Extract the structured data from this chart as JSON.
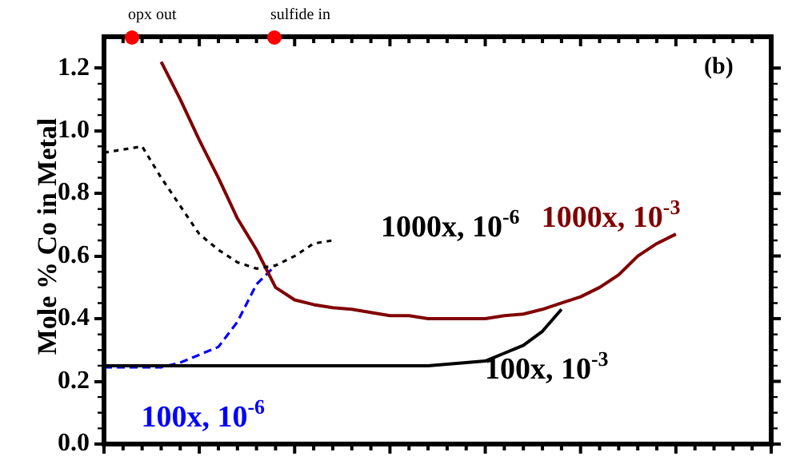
{
  "chart_data": {
    "type": "line",
    "ylabel": "Mole % Co in Metal",
    "categories": [
      null,
      null,
      null,
      null,
      null,
      null,
      null,
      null,
      null,
      null,
      null,
      null,
      null,
      null,
      null,
      null,
      null,
      null,
      null,
      null,
      null,
      null,
      null,
      null,
      null,
      null,
      null,
      null,
      null,
      null,
      null,
      null,
      null,
      null,
      null,
      null
    ],
    "ylim": [
      0,
      1.3
    ],
    "yticks": [
      {
        "value": 0,
        "label": "0.0"
      },
      {
        "value": 0.2,
        "label": "0.2"
      },
      {
        "value": 0.4,
        "label": "0.4"
      },
      {
        "value": 0.6,
        "label": "0.6"
      },
      {
        "value": 0.8,
        "label": "0.8"
      },
      {
        "value": 1.0,
        "label": "1.0"
      },
      {
        "value": 1.2,
        "label": "1.2"
      }
    ],
    "tick_labels": "y",
    "grid": false,
    "legend": false,
    "marker": "none",
    "annotations": [
      "(b)",
      "opx out",
      "sulfide in"
    ],
    "series": [
      {
        "name": "1000x, 10$^{-6}$",
        "color": "#000000",
        "line_style": "dotted",
        "values": [
          0.93,
          0.94,
          0.95,
          0.85,
          0.76,
          0.67,
          0.62,
          0.58,
          0.56,
          0.57,
          0.6,
          0.64,
          0.65,
          null,
          null,
          null,
          null,
          null,
          null,
          null,
          null,
          null,
          null,
          null,
          null,
          null,
          null,
          null,
          null,
          null,
          null,
          null,
          null,
          null,
          null,
          null
        ]
      },
      {
        "name": "1000x, 10$^{-3}$",
        "color": "#800000",
        "line_style": "solid",
        "values": [
          null,
          null,
          null,
          1.22,
          1.1,
          0.97,
          0.85,
          0.72,
          0.62,
          0.5,
          0.46,
          0.445,
          0.435,
          0.43,
          0.42,
          0.41,
          0.41,
          0.4,
          0.4,
          0.4,
          0.4,
          0.41,
          0.415,
          0.43,
          0.45,
          0.47,
          0.5,
          0.54,
          0.6,
          0.64,
          0.67,
          null,
          null,
          null,
          null,
          null
        ]
      },
      {
        "name": "100x, 10$^{-3}$",
        "color": "#000000",
        "line_style": "solid",
        "values": [
          0.25,
          0.25,
          0.25,
          0.25,
          0.25,
          0.25,
          0.25,
          0.25,
          0.25,
          0.25,
          0.25,
          0.25,
          0.25,
          0.25,
          0.25,
          0.25,
          0.25,
          0.25,
          0.255,
          0.26,
          0.265,
          0.29,
          0.315,
          0.36,
          0.43,
          null,
          null,
          null,
          null,
          null,
          null,
          null,
          null,
          null,
          null,
          null
        ]
      },
      {
        "name": "100x, 10$^{-6}$",
        "color": "#0000ff",
        "line_style": "dashed",
        "values": [
          0.245,
          0.245,
          0.245,
          0.245,
          0.26,
          0.285,
          0.31,
          0.39,
          0.51,
          0.57,
          null,
          null,
          null,
          null,
          null,
          null,
          null,
          null,
          null,
          null,
          null,
          null,
          null,
          null,
          null,
          null,
          null,
          null,
          null,
          null,
          null,
          null,
          null,
          null,
          null,
          null
        ]
      }
    ]
  }
}
